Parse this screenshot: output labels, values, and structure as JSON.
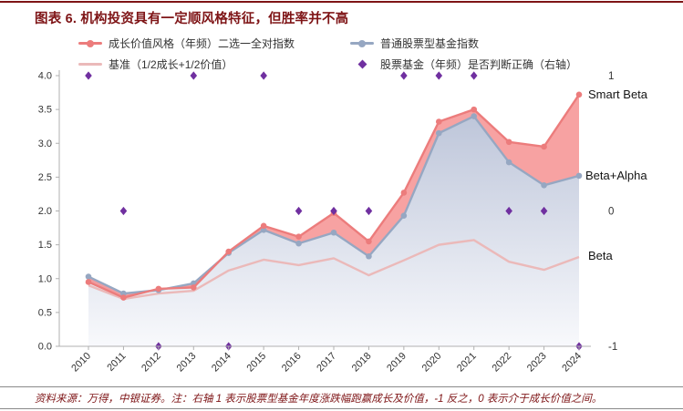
{
  "header": {
    "title": "图表 6. 机构投资具有一定顺风格特征，但胜率并不高"
  },
  "legend": [
    {
      "label": "成长价值风格（年频）二选一全对指数",
      "marker": "line-dot",
      "color": "#EC7C7C"
    },
    {
      "label": "普通股票型基金指数",
      "marker": "line-dot",
      "color": "#96A7C2"
    },
    {
      "label": "基准（1/2成长+1/2价值）",
      "marker": "line",
      "color": "#EBB9B9"
    },
    {
      "label": "股票基金（年频）是否判断正确（右轴）",
      "marker": "diamond",
      "color": "#7030A0"
    }
  ],
  "annotations": {
    "smart_beta": "Smart Beta",
    "beta_alpha": "Beta+Alpha",
    "beta": "Beta"
  },
  "chart_data": {
    "type": "line",
    "title": "机构投资具有一定顺风格特征，但胜率并不高",
    "x": [
      "2010",
      "2011",
      "2012",
      "2013",
      "2014",
      "2015",
      "2016",
      "2017",
      "2018",
      "2019",
      "2020",
      "2021",
      "2022",
      "2023",
      "2024"
    ],
    "series": [
      {
        "name": "成长价值风格（年频）二选一全对指数",
        "color": "#EC7C7C",
        "marker": "circle",
        "axis": "left",
        "values": [
          0.95,
          0.72,
          0.85,
          0.87,
          1.4,
          1.78,
          1.62,
          1.97,
          1.55,
          2.27,
          3.32,
          3.5,
          3.02,
          2.95,
          3.72
        ]
      },
      {
        "name": "普通股票型基金指数",
        "color": "#96A7C2",
        "marker": "circle",
        "axis": "left",
        "values": [
          1.03,
          0.78,
          0.83,
          0.93,
          1.38,
          1.72,
          1.52,
          1.68,
          1.33,
          1.93,
          3.15,
          3.4,
          2.72,
          2.38,
          2.52
        ]
      },
      {
        "name": "基准（1/2成长+1/2价值）",
        "color": "#EBB9B9",
        "marker": "none",
        "axis": "left",
        "values": [
          0.9,
          0.7,
          0.78,
          0.82,
          1.12,
          1.28,
          1.2,
          1.3,
          1.05,
          1.27,
          1.5,
          1.57,
          1.25,
          1.13,
          1.32
        ]
      },
      {
        "name": "股票基金（年频）是否判断正确（右轴）",
        "color": "#7030A0",
        "marker": "diamond",
        "axis": "right",
        "values": [
          1,
          0,
          -1,
          1,
          -1,
          1,
          0,
          0,
          0,
          1,
          1,
          1,
          0,
          0,
          -1
        ]
      }
    ],
    "left_axis": {
      "min": 0,
      "max": 4,
      "ticks": [
        "0.0",
        "0.5",
        "1.0",
        "1.5",
        "2.0",
        "2.5",
        "3.0",
        "3.5",
        "4.0"
      ]
    },
    "right_axis": {
      "ticks": [
        "1",
        "0",
        "-1"
      ],
      "values": [
        1,
        0,
        -1
      ]
    },
    "styles": {
      "between_fill": "#F47B7B",
      "between_opacity": 0.7,
      "under_gradient_top": "#BEC6DA",
      "under_gradient_bottom": "#F8F9FC",
      "axis_color": "#b0b0b0"
    },
    "legend_position": "top",
    "grid": false
  },
  "footer": {
    "text": "资料来源：万得，中银证券。注：右轴 1 表示股票型基金年度涨跌幅跑赢成长及价值，-1 反之，0 表示介于成长价值之间。"
  }
}
